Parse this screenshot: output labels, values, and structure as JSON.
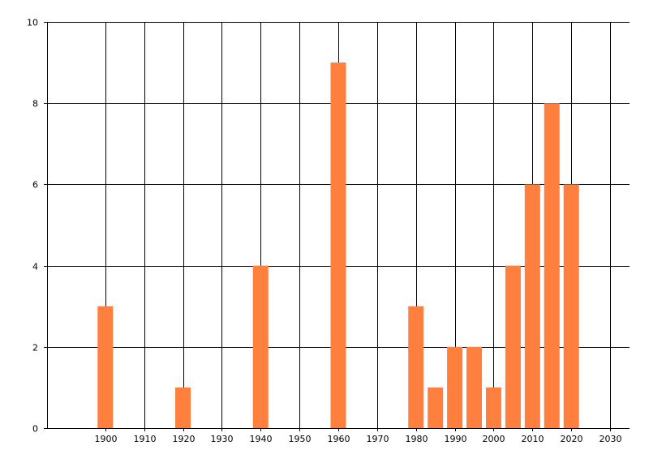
{
  "chart_data": {
    "type": "bar",
    "x": [
      1900,
      1920,
      1940,
      1960,
      1980,
      1985,
      1990,
      1995,
      2000,
      2005,
      2010,
      2015,
      2020
    ],
    "values": [
      3,
      1,
      4,
      9,
      3,
      1,
      2,
      2,
      1,
      4,
      6,
      8,
      6
    ],
    "xlim": [
      1885,
      2035
    ],
    "ylim": [
      0,
      10
    ],
    "x_ticks": [
      "1900",
      "1910",
      "1920",
      "1930",
      "1940",
      "1950",
      "1960",
      "1970",
      "1980",
      "1990",
      "2000",
      "2010",
      "2020",
      "2030"
    ],
    "y_ticks": [
      "0",
      "2",
      "4",
      "6",
      "8",
      "10"
    ],
    "grid": true,
    "bar_color": "#FF7F3F",
    "grid_color": "#000000",
    "title": "",
    "xlabel": "",
    "ylabel": ""
  }
}
